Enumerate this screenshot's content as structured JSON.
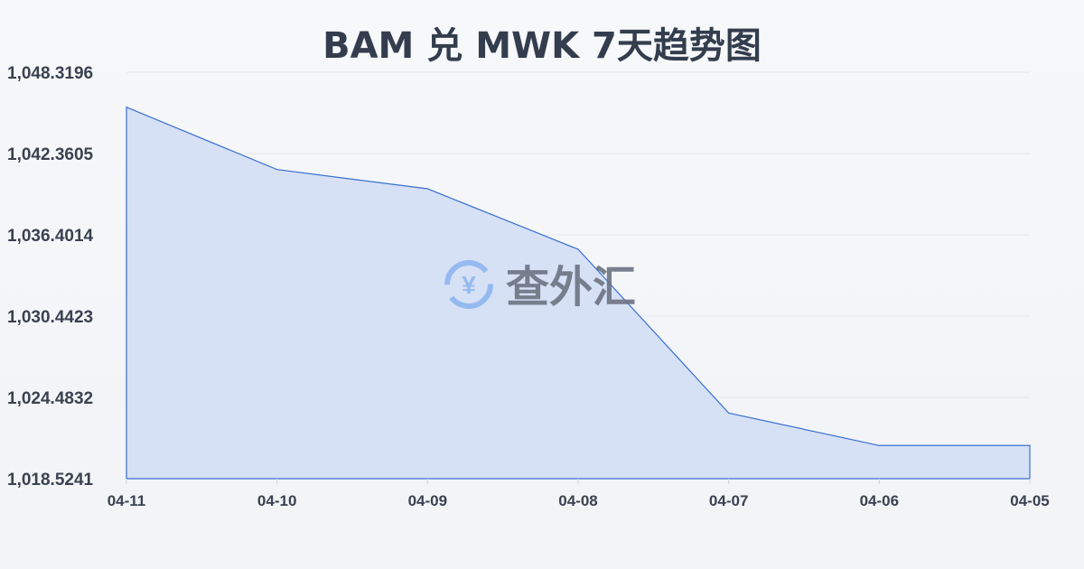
{
  "chart_data": {
    "type": "area",
    "title": "BAM 兑 MWK 7天趋势图",
    "categories": [
      "04-11",
      "04-10",
      "04-09",
      "04-08",
      "04-07",
      "04-06",
      "04-05"
    ],
    "series": [
      {
        "values": [
          1045.757,
          1041.188,
          1039.777,
          1035.34,
          1023.338,
          1020.955,
          1020.955
        ]
      }
    ],
    "yticks": [
      "1,048.3196",
      "1,042.3605",
      "1,036.4014",
      "1,030.4423",
      "1,024.4832",
      "1,018.5241"
    ],
    "ylim": [
      1018.5241,
      1048.3196
    ],
    "grid": true,
    "colors": {
      "line": "#3a6fd0",
      "fill": "#d6e1f6"
    }
  },
  "watermark": {
    "text": "查外汇",
    "icon": "yen-exchange-icon"
  }
}
